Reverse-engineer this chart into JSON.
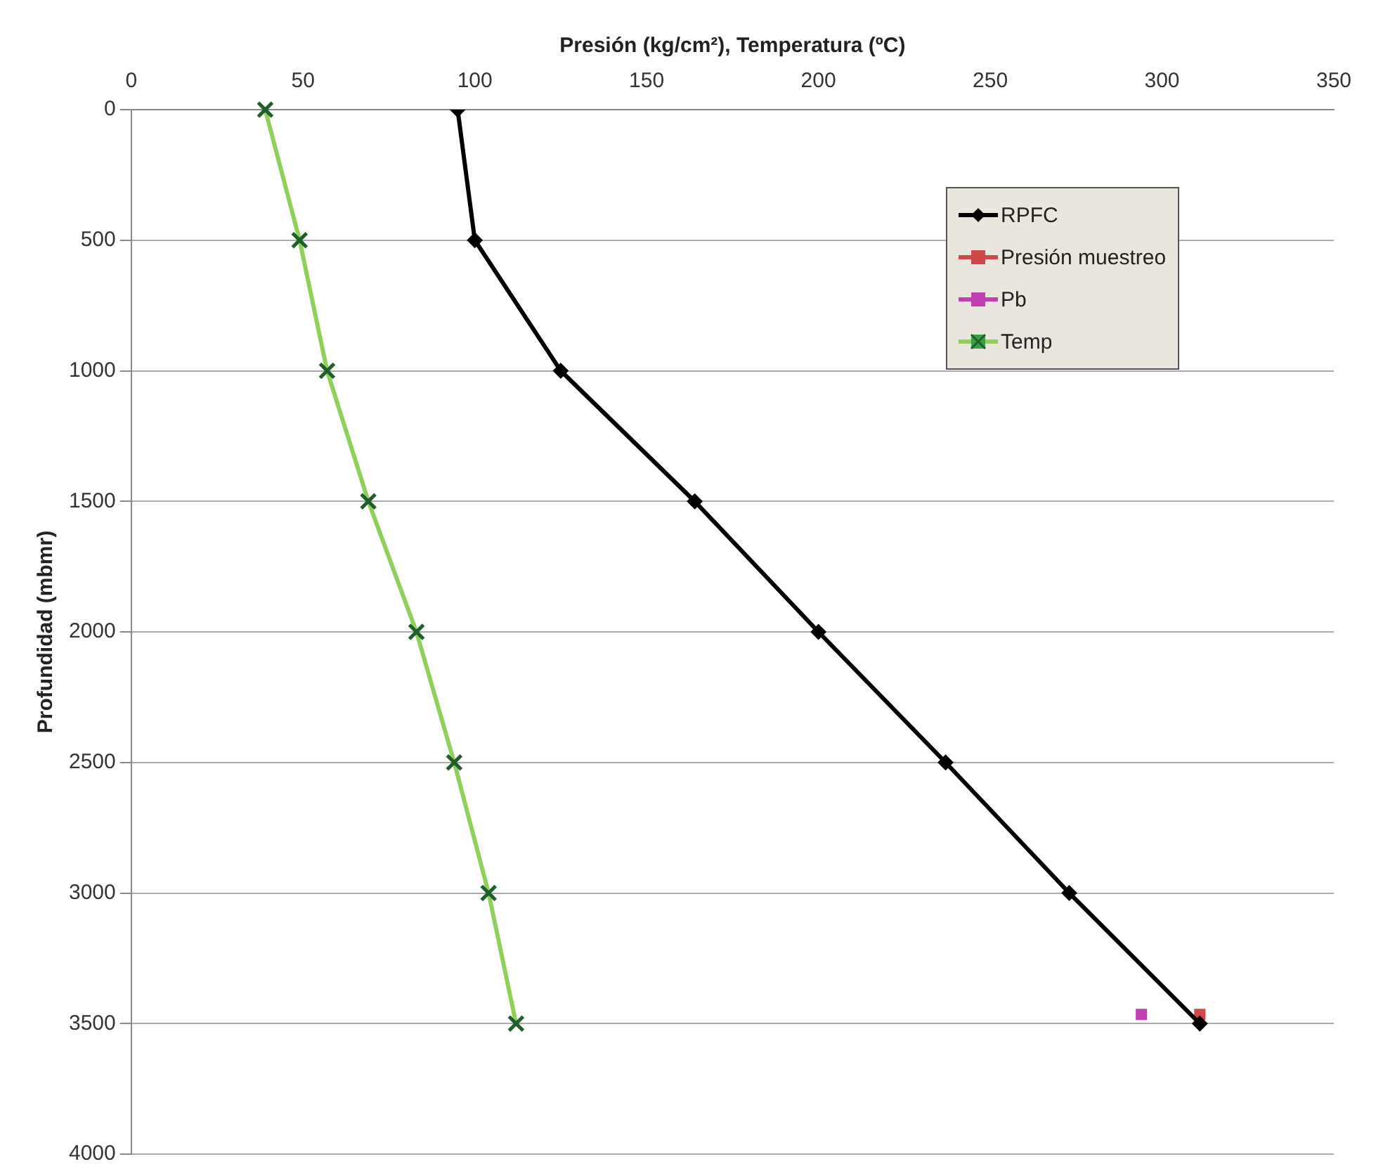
{
  "chart_data": {
    "type": "line",
    "xlabel": "Presión (kg/cm²), Temperatura (ºC)",
    "ylabel": "Profundidad (mbmr)",
    "xlim": [
      0,
      350
    ],
    "xticks": [
      0,
      50,
      100,
      150,
      200,
      250,
      300,
      350
    ],
    "ylim": [
      4000,
      0
    ],
    "yticks": [
      0,
      500,
      1000,
      1500,
      2000,
      2500,
      3000,
      3500,
      4000
    ],
    "grid": "y",
    "legend": "top right",
    "series": [
      {
        "name": "RPFC",
        "color": "#000000",
        "marker": "diamond",
        "x": [
          95,
          100,
          125,
          164,
          200,
          237,
          273,
          311
        ],
        "values": [
          0,
          500,
          1000,
          1500,
          2000,
          2500,
          3000,
          3500
        ]
      },
      {
        "name": "Presión muestreo",
        "type": "scatter",
        "color": "#d04848",
        "marker": "square",
        "x": [
          311
        ],
        "values": [
          3465
        ]
      },
      {
        "name": "Pb",
        "type": "scatter",
        "color": "#c040b0",
        "marker": "square",
        "x": [
          294
        ],
        "values": [
          3465
        ]
      },
      {
        "name": "Temp",
        "color": "#8fd05a",
        "marker": "cross",
        "x": [
          39,
          49,
          57,
          69,
          83,
          94,
          104,
          112
        ],
        "values": [
          0,
          500,
          1000,
          1500,
          2000,
          2500,
          3000,
          3500
        ]
      }
    ]
  }
}
